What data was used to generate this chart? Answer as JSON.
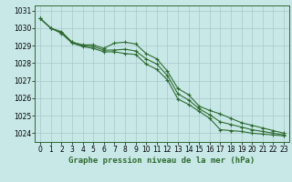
{
  "xlabel": "Graphe pression niveau de la mer (hPa)",
  "hours": [
    0,
    1,
    2,
    3,
    4,
    5,
    6,
    7,
    8,
    9,
    10,
    11,
    12,
    13,
    14,
    15,
    16,
    17,
    18,
    19,
    20,
    21,
    22,
    23
  ],
  "line_upper": [
    1030.55,
    1030.0,
    1029.8,
    1029.2,
    1029.05,
    1029.05,
    1028.85,
    1029.15,
    1029.2,
    1029.1,
    1028.55,
    1028.25,
    1027.55,
    1026.55,
    1026.2,
    1025.55,
    1025.3,
    1025.1,
    1024.85,
    1024.6,
    1024.45,
    1024.3,
    1024.15,
    1024.0
  ],
  "line_lower": [
    1030.55,
    1030.0,
    1029.7,
    1029.15,
    1028.95,
    1028.85,
    1028.65,
    1028.65,
    1028.55,
    1028.5,
    1027.95,
    1027.65,
    1027.05,
    1025.95,
    1025.65,
    1025.25,
    1024.85,
    1024.2,
    1024.15,
    1024.1,
    1024.0,
    1023.95,
    1023.9,
    1023.85
  ],
  "line_mid": [
    1030.55,
    1030.0,
    1029.75,
    1029.2,
    1029.0,
    1028.95,
    1028.75,
    1028.75,
    1028.8,
    1028.7,
    1028.25,
    1027.95,
    1027.3,
    1026.25,
    1025.9,
    1025.4,
    1025.05,
    1024.65,
    1024.5,
    1024.35,
    1024.2,
    1024.1,
    1024.0,
    1023.9
  ],
  "line_color": "#2d6a2d",
  "bg_color": "#c8e8e8",
  "grid_color": "#a8c8c8",
  "ylim_min": 1023.5,
  "ylim_max": 1031.3,
  "yticks": [
    1024,
    1025,
    1026,
    1027,
    1028,
    1029,
    1030,
    1031
  ],
  "xticks": [
    0,
    1,
    2,
    3,
    4,
    5,
    6,
    7,
    8,
    9,
    10,
    11,
    12,
    13,
    14,
    15,
    16,
    17,
    18,
    19,
    20,
    21,
    22,
    23
  ],
  "marker": "+",
  "marker_size": 3,
  "line_width": 0.8,
  "xlabel_fontsize": 6.5,
  "tick_fontsize": 5.5
}
